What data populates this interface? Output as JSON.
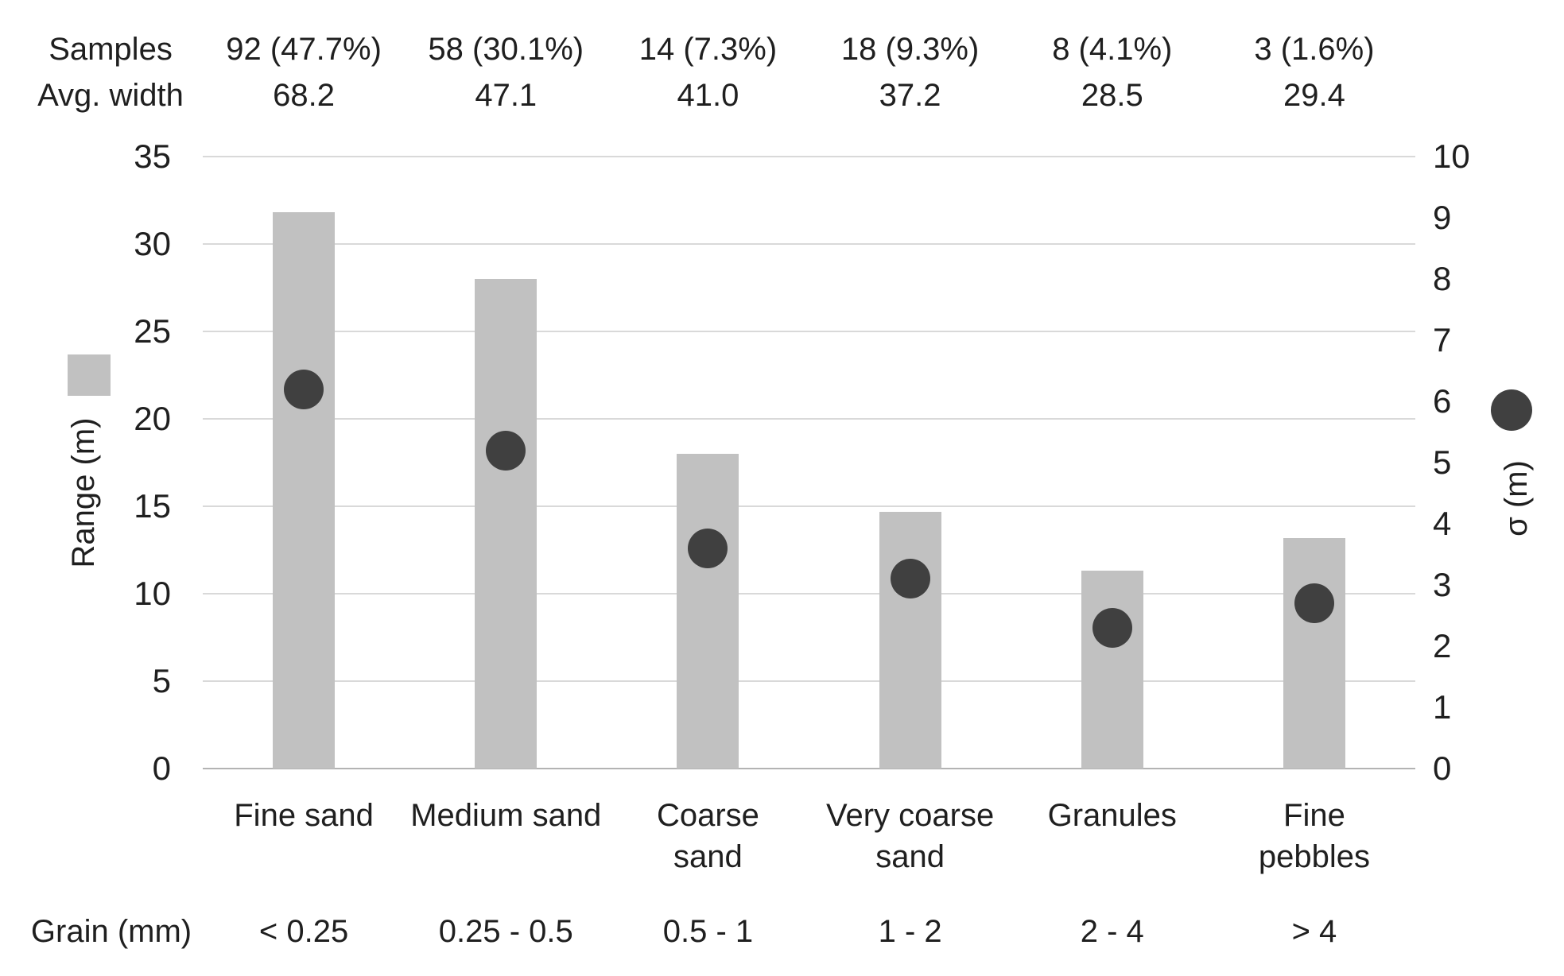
{
  "rows": {
    "samples_label": "Samples",
    "avg_width_label": "Avg. width",
    "grain_label": "Grain (mm)"
  },
  "chart_data": {
    "type": "combo: bar (left axis) + scatter (right axis)",
    "categories": [
      "Fine sand",
      "Medium sand",
      "Coarse\nsand",
      "Very coarse\nsand",
      "Granules",
      "Fine\npebbles"
    ],
    "samples": [
      "92 (47.7%)",
      "58 (30.1%)",
      "14 (7.3%)",
      "18 (9.3%)",
      "8 (4.1%)",
      "3 (1.6%)"
    ],
    "avg_width": [
      "68.2",
      "47.1",
      "41.0",
      "37.2",
      "28.5",
      "29.4"
    ],
    "grain_mm": [
      "< 0.25",
      "0.25 - 0.5",
      "0.5 - 1",
      "1 - 2",
      "2 - 4",
      "> 4"
    ],
    "series": [
      {
        "name": "Range (m)",
        "type": "bar",
        "axis": "left",
        "values": [
          31.8,
          28.0,
          18.0,
          14.7,
          11.3,
          13.2
        ]
      },
      {
        "name": "σ (m)",
        "type": "scatter",
        "axis": "right",
        "values": [
          6.2,
          5.2,
          3.6,
          3.1,
          2.3,
          2.7
        ]
      }
    ],
    "left_axis": {
      "label": "Range (m)",
      "min": 0,
      "max": 35,
      "step": 5
    },
    "right_axis": {
      "label": "σ (m)",
      "min": 0,
      "max": 10,
      "step": 1
    },
    "grid": true,
    "legend": {
      "bar_swatch": "square",
      "dot_swatch": "circle"
    },
    "colors": {
      "bar": "#c1c1c1",
      "dot": "#404040",
      "gridline": "#d9d9d9",
      "axis_line": "#b3b3b3",
      "text": "#1f1f1f"
    }
  }
}
